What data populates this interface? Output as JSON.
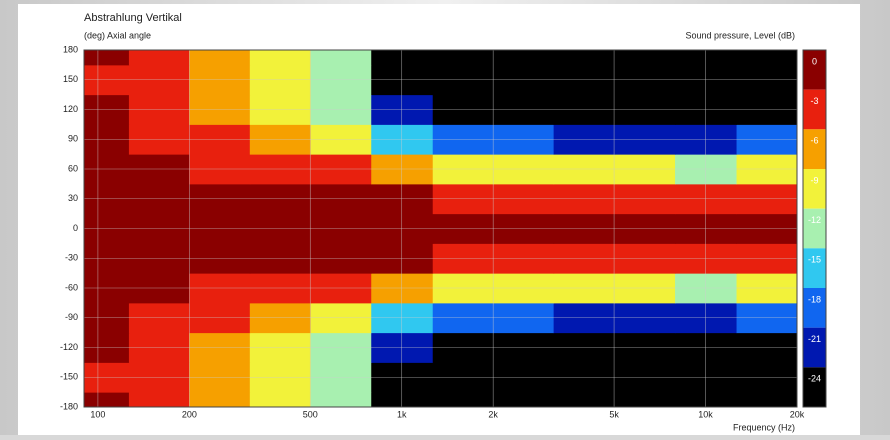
{
  "chart_data": {
    "type": "heatmap",
    "title": "Abstrahlung Vertikal",
    "y_label": "(deg)  Axial angle",
    "x_label": "Frequency  (Hz)",
    "colorbar_label": "Sound pressure, Level  (dB)",
    "x_scale": "log",
    "grid": true,
    "x": [
      100,
      160,
      250,
      400,
      630,
      1000,
      1600,
      2500,
      4000,
      6300,
      10000,
      16000
    ],
    "y": [
      -180,
      -150,
      -120,
      -90,
      -60,
      -30,
      0,
      30,
      60,
      90,
      120,
      150,
      180
    ],
    "z": [
      [
        -2,
        -3,
        -6,
        -9,
        -14,
        -25,
        -27,
        -28,
        -28,
        -28,
        -28,
        -26
      ],
      [
        -3,
        -4,
        -7,
        -10,
        -14,
        -24,
        -27,
        -28,
        -28,
        -28,
        -28,
        -26
      ],
      [
        -2,
        -4,
        -6,
        -9,
        -13,
        -22,
        -25,
        -26,
        -27,
        -27,
        -27,
        -24
      ],
      [
        -2,
        -3,
        -5,
        -7,
        -10,
        -16,
        -19,
        -20,
        -21,
        -22,
        -22,
        -19
      ],
      [
        -1,
        -2,
        -3,
        -4,
        -5,
        -7,
        -9,
        -10,
        -11,
        -11,
        -12,
        -11
      ],
      [
        0,
        0,
        -1,
        -1,
        -2,
        -2,
        -3,
        -3,
        -3,
        -3,
        -3,
        -4
      ],
      [
        0,
        0,
        0,
        0,
        0,
        0,
        0,
        0,
        0,
        0,
        0,
        0
      ],
      [
        0,
        0,
        -1,
        -1,
        -2,
        -2,
        -3,
        -3,
        -3,
        -3,
        -3,
        -4
      ],
      [
        -1,
        -2,
        -3,
        -4,
        -5,
        -7,
        -9,
        -10,
        -11,
        -11,
        -12,
        -11
      ],
      [
        -2,
        -3,
        -5,
        -7,
        -10,
        -16,
        -19,
        -20,
        -21,
        -22,
        -22,
        -19
      ],
      [
        -2,
        -4,
        -6,
        -9,
        -13,
        -22,
        -25,
        -26,
        -27,
        -27,
        -27,
        -24
      ],
      [
        -3,
        -4,
        -7,
        -10,
        -14,
        -24,
        -27,
        -28,
        -28,
        -28,
        -28,
        -26
      ],
      [
        -2,
        -3,
        -6,
        -9,
        -14,
        -25,
        -27,
        -28,
        -28,
        -28,
        -28,
        -26
      ]
    ],
    "xlim": [
      90,
      20000
    ],
    "ylim": [
      -180,
      180
    ],
    "xticks": [
      100,
      200,
      500,
      {
        "value": 1000,
        "label": "1k"
      },
      {
        "value": 2000,
        "label": "2k"
      },
      {
        "value": 5000,
        "label": "5k"
      },
      {
        "value": 10000,
        "label": "10k"
      },
      {
        "value": 20000,
        "label": "20k"
      }
    ],
    "yticks": [
      -180,
      -150,
      -120,
      -90,
      -60,
      -30,
      0,
      30,
      60,
      90,
      120,
      150,
      180
    ],
    "levels": [
      0,
      -3,
      -6,
      -9,
      -12,
      -15,
      -18,
      -21,
      -24
    ],
    "colors": [
      "#8a0000",
      "#e8200e",
      "#f6a000",
      "#f2f23a",
      "#a8f0b0",
      "#30c8f0",
      "#1066f0",
      "#0018b0",
      "#000000"
    ]
  }
}
